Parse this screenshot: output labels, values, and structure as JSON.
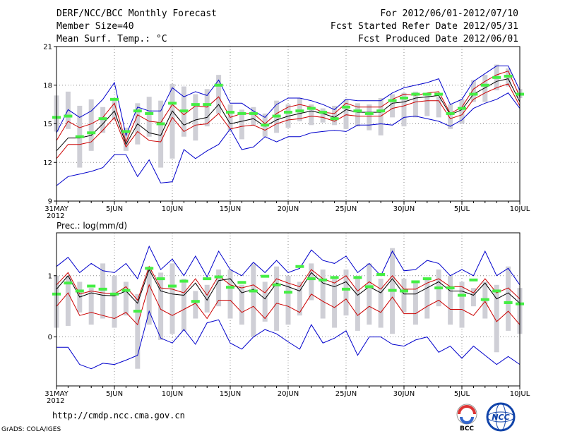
{
  "header": {
    "title": "DERF/NCC/BCC Monthly Forecast",
    "member_size": "Member Size=40",
    "variable": "Mean Surf. Temp.: °C",
    "period": "For 2012/06/01-2012/07/10",
    "started": "Fcst Started Refer Date 2012/05/31",
    "produced": "Fcst Produced Date 2012/06/01"
  },
  "footer": {
    "url": "http://cmdp.ncc.cma.gov.cn",
    "grads": "GrADS: COLA/IGES",
    "logo_bcc": "BCC",
    "logo_ncc": "NCC"
  },
  "colors": {
    "mean": "#000000",
    "inner": "#cc0000",
    "outer": "#0000cc",
    "obs": "#44ee44",
    "box": "#cfcfd6",
    "grid": "#888888"
  },
  "chart_data": [
    {
      "type": "line",
      "title": "Mean Surf. Temp.: °C",
      "ylim": [
        9,
        21
      ],
      "yticks": [
        9,
        12,
        15,
        18,
        21
      ],
      "ytick_labels": [
        "9",
        "12",
        "15",
        "18",
        "21"
      ],
      "xlim": [
        0,
        40
      ],
      "xticks": [
        0,
        5,
        10,
        15,
        20,
        25,
        30,
        35,
        40
      ],
      "xtick_labels": [
        "31MAY",
        "5JUN",
        "10JUN",
        "15JUN",
        "20JUN",
        "25JUN",
        "30JUN",
        "5JUL",
        "10JUL"
      ],
      "year_label": "2012",
      "grid": true,
      "series": [
        {
          "name": "upper bound",
          "role": "outer",
          "values": [
            14.3,
            16.1,
            15.5,
            16.0,
            16.9,
            18.2,
            14.1,
            16.3,
            16.0,
            16.0,
            17.8,
            17.1,
            17.5,
            17.2,
            18.4,
            16.6,
            16.6,
            16.0,
            15.5,
            16.5,
            17.0,
            17.0,
            16.8,
            16.5,
            16.1,
            16.9,
            16.8,
            16.8,
            16.8,
            17.4,
            17.8,
            18.0,
            18.2,
            18.5,
            16.5,
            16.9,
            18.3,
            18.9,
            19.5,
            19.5,
            17.6
          ]
        },
        {
          "name": "upper spread",
          "role": "inner",
          "values": [
            13.7,
            15.2,
            14.7,
            15.0,
            15.5,
            16.6,
            13.6,
            15.7,
            15.2,
            15.1,
            16.5,
            15.7,
            16.4,
            16.3,
            17.1,
            15.5,
            15.8,
            15.8,
            15.0,
            15.8,
            16.3,
            16.5,
            16.3,
            15.9,
            15.8,
            16.6,
            16.3,
            16.3,
            16.3,
            16.9,
            17.3,
            17.2,
            17.4,
            17.5,
            15.8,
            16.3,
            17.7,
            18.3,
            18.8,
            19.1,
            17.1
          ]
        },
        {
          "name": "ensemble mean",
          "role": "mean",
          "values": [
            12.9,
            13.9,
            13.9,
            14.1,
            15.0,
            16.0,
            13.4,
            15.0,
            14.3,
            14.1,
            16.0,
            14.9,
            15.3,
            15.5,
            16.5,
            15.0,
            15.2,
            15.4,
            14.8,
            15.3,
            15.6,
            15.8,
            16.0,
            15.8,
            15.5,
            16.1,
            15.9,
            15.9,
            15.9,
            16.6,
            16.7,
            17.0,
            17.1,
            17.2,
            15.7,
            16.1,
            17.3,
            17.8,
            18.3,
            18.5,
            16.7
          ]
        },
        {
          "name": "lower spread",
          "role": "inner",
          "values": [
            12.3,
            13.4,
            13.4,
            13.6,
            14.5,
            15.5,
            13.2,
            14.4,
            13.7,
            13.6,
            15.5,
            14.4,
            14.9,
            15.0,
            15.8,
            14.6,
            14.8,
            14.9,
            14.5,
            15.0,
            15.3,
            15.4,
            15.6,
            15.5,
            15.2,
            15.7,
            15.6,
            15.6,
            15.6,
            16.2,
            16.4,
            16.7,
            16.8,
            16.8,
            15.4,
            15.7,
            16.9,
            17.4,
            17.8,
            18.1,
            16.4
          ]
        },
        {
          "name": "lower bound",
          "role": "outer",
          "values": [
            10.2,
            10.9,
            11.1,
            11.3,
            11.6,
            12.6,
            12.6,
            10.9,
            12.2,
            10.4,
            10.5,
            13.0,
            12.3,
            12.9,
            13.4,
            14.6,
            13.0,
            13.2,
            14.0,
            13.6,
            14.0,
            14.0,
            14.3,
            14.4,
            14.5,
            14.4,
            14.9,
            14.9,
            15.0,
            14.9,
            15.5,
            15.6,
            15.4,
            15.2,
            14.8,
            15.3,
            16.2,
            16.6,
            16.9,
            17.4,
            16.2
          ]
        }
      ],
      "boxes": {
        "low": [
          14.4,
          14.6,
          11.6,
          12.9,
          14.3,
          15.3,
          12.9,
          13.4,
          14.0,
          11.6,
          12.3,
          14.0,
          13.7,
          14.8,
          15.8,
          14.5,
          13.8,
          14.9,
          14.0,
          14.3,
          14.7,
          15.2,
          14.9,
          15.1,
          14.9,
          14.6,
          14.8,
          14.5,
          14.1,
          15.5,
          14.8,
          15.5,
          15.6,
          15.5,
          14.6,
          15.0,
          16.7,
          16.7,
          17.6,
          17.9,
          17.0
        ],
        "high": [
          17.2,
          17.5,
          16.4,
          16.9,
          16.3,
          17.0,
          14.7,
          16.6,
          17.1,
          16.8,
          18.1,
          17.9,
          17.3,
          17.7,
          18.8,
          16.5,
          16.1,
          16.3,
          15.8,
          16.8,
          16.5,
          17.0,
          16.5,
          16.2,
          16.4,
          16.9,
          16.6,
          16.5,
          17.0,
          17.3,
          17.4,
          17.5,
          17.4,
          17.1,
          16.5,
          16.9,
          18.4,
          18.8,
          19.6,
          19.3,
          17.7
        ]
      },
      "observed": [
        15.5,
        15.6,
        14.0,
        14.3,
        15.4,
        16.9,
        14.4,
        16.0,
        15.8,
        15.0,
        16.6,
        16.0,
        16.5,
        16.5,
        18.0,
        15.9,
        15.8,
        15.8,
        14.9,
        15.6,
        15.9,
        16.0,
        16.2,
        15.9,
        15.4,
        16.3,
        16.0,
        15.8,
        16.0,
        16.8,
        17.0,
        17.3,
        17.3,
        17.3,
        15.8,
        16.2,
        17.3,
        18.0,
        18.6,
        18.7,
        17.3
      ]
    },
    {
      "type": "line",
      "title": "Prec.: log(mm/d)",
      "ylim": [
        -0.8,
        1.7
      ],
      "yticks": [
        0,
        1
      ],
      "ytick_labels": [
        "0",
        "1"
      ],
      "xlim": [
        0,
        40
      ],
      "xticks": [
        0,
        5,
        10,
        15,
        20,
        25,
        30,
        35,
        40
      ],
      "xtick_labels": [
        "31MAY",
        "5JUN",
        "10JUN",
        "15JUN",
        "20JUN",
        "25JUN",
        "30JUN",
        "5JUL",
        "10JUL"
      ],
      "year_label": "2012",
      "grid": true,
      "series": [
        {
          "name": "upper bound",
          "role": "outer",
          "values": [
            1.15,
            1.3,
            1.05,
            1.2,
            1.08,
            1.05,
            1.2,
            0.95,
            1.48,
            1.1,
            1.27,
            1.0,
            1.32,
            0.98,
            1.4,
            1.1,
            1.0,
            1.22,
            1.05,
            1.25,
            1.05,
            1.12,
            1.42,
            1.25,
            1.2,
            1.32,
            1.05,
            1.2,
            1.0,
            1.4,
            1.08,
            1.1,
            1.25,
            1.2,
            1.0,
            1.1,
            1.0,
            1.4,
            1.0,
            1.12,
            0.85
          ]
        },
        {
          "name": "upper spread",
          "role": "inner",
          "values": [
            0.85,
            1.05,
            0.7,
            0.75,
            0.72,
            0.7,
            0.82,
            0.6,
            1.15,
            0.8,
            0.78,
            0.72,
            0.95,
            0.68,
            1.0,
            0.85,
            0.8,
            0.85,
            0.72,
            0.95,
            0.88,
            0.82,
            1.1,
            0.95,
            0.88,
            1.0,
            0.75,
            0.9,
            0.78,
            1.0,
            0.78,
            0.78,
            0.88,
            0.95,
            0.82,
            0.82,
            0.72,
            0.95,
            0.72,
            0.8,
            0.62
          ]
        },
        {
          "name": "ensemble mean",
          "role": "mean",
          "values": [
            0.78,
            1.0,
            0.65,
            0.72,
            0.68,
            0.67,
            0.75,
            0.55,
            1.1,
            0.75,
            0.7,
            0.68,
            0.88,
            0.6,
            0.92,
            0.95,
            0.72,
            0.78,
            0.62,
            0.88,
            0.82,
            0.75,
            1.05,
            0.88,
            0.82,
            0.9,
            0.68,
            0.82,
            0.72,
            0.95,
            0.7,
            0.7,
            0.8,
            0.9,
            0.75,
            0.75,
            0.68,
            0.88,
            0.62,
            0.72,
            0.55
          ]
        },
        {
          "name": "lower spread",
          "role": "inner",
          "values": [
            0.5,
            0.72,
            0.35,
            0.4,
            0.35,
            0.3,
            0.4,
            0.2,
            0.85,
            0.45,
            0.35,
            0.45,
            0.55,
            0.3,
            0.6,
            0.6,
            0.4,
            0.5,
            0.3,
            0.55,
            0.5,
            0.4,
            0.7,
            0.58,
            0.48,
            0.62,
            0.35,
            0.5,
            0.4,
            0.65,
            0.38,
            0.38,
            0.5,
            0.6,
            0.45,
            0.45,
            0.35,
            0.58,
            0.25,
            0.42,
            0.2
          ]
        },
        {
          "name": "lower bound",
          "role": "outer",
          "values": [
            -0.17,
            -0.17,
            -0.45,
            -0.52,
            -0.43,
            -0.45,
            -0.38,
            -0.3,
            0.42,
            -0.02,
            -0.1,
            0.12,
            -0.12,
            0.23,
            0.28,
            -0.1,
            -0.2,
            0.0,
            0.12,
            0.05,
            -0.08,
            -0.2,
            0.2,
            -0.1,
            -0.02,
            0.1,
            -0.3,
            0.0,
            0.0,
            -0.12,
            -0.15,
            -0.05,
            0.0,
            -0.25,
            -0.15,
            -0.35,
            -0.15,
            -0.3,
            -0.45,
            -0.32,
            -0.45
          ]
        }
      ],
      "boxes": {
        "low": [
          0.15,
          0.18,
          0.4,
          0.2,
          0.3,
          0.15,
          0.35,
          -0.52,
          0.2,
          -0.05,
          0.05,
          0.1,
          0.3,
          0.4,
          0.5,
          0.3,
          0.2,
          0.0,
          0.25,
          0.1,
          0.2,
          0.35,
          0.6,
          0.3,
          0.15,
          0.35,
          0.1,
          0.2,
          0.15,
          0.05,
          0.4,
          0.2,
          0.3,
          0.5,
          0.2,
          0.15,
          0.5,
          0.3,
          -0.25,
          0.1,
          0.05
        ],
        "high": [
          1.0,
          1.0,
          0.9,
          0.8,
          1.2,
          1.0,
          0.9,
          0.7,
          1.15,
          1.05,
          1.2,
          0.95,
          0.75,
          0.85,
          1.1,
          1.1,
          0.85,
          1.2,
          0.9,
          1.15,
          1.0,
          0.9,
          1.2,
          1.1,
          0.95,
          1.1,
          1.0,
          1.2,
          0.95,
          1.45,
          0.95,
          0.9,
          0.95,
          1.1,
          1.0,
          0.9,
          0.8,
          0.9,
          0.85,
          1.15,
          0.8
        ]
      },
      "observed": [
        0.7,
        0.88,
        0.75,
        0.83,
        0.78,
        0.7,
        0.76,
        0.42,
        1.12,
        0.95,
        0.83,
        0.91,
        0.58,
        0.95,
        0.98,
        0.81,
        0.89,
        0.75,
        0.99,
        0.85,
        0.73,
        1.15,
        0.95,
        0.93,
        0.97,
        0.78,
        0.97,
        0.82,
        1.02,
        0.76,
        0.75,
        0.9,
        0.95,
        0.8,
        0.8,
        0.68,
        0.93,
        0.61,
        0.75,
        0.56,
        0.54
      ]
    }
  ]
}
